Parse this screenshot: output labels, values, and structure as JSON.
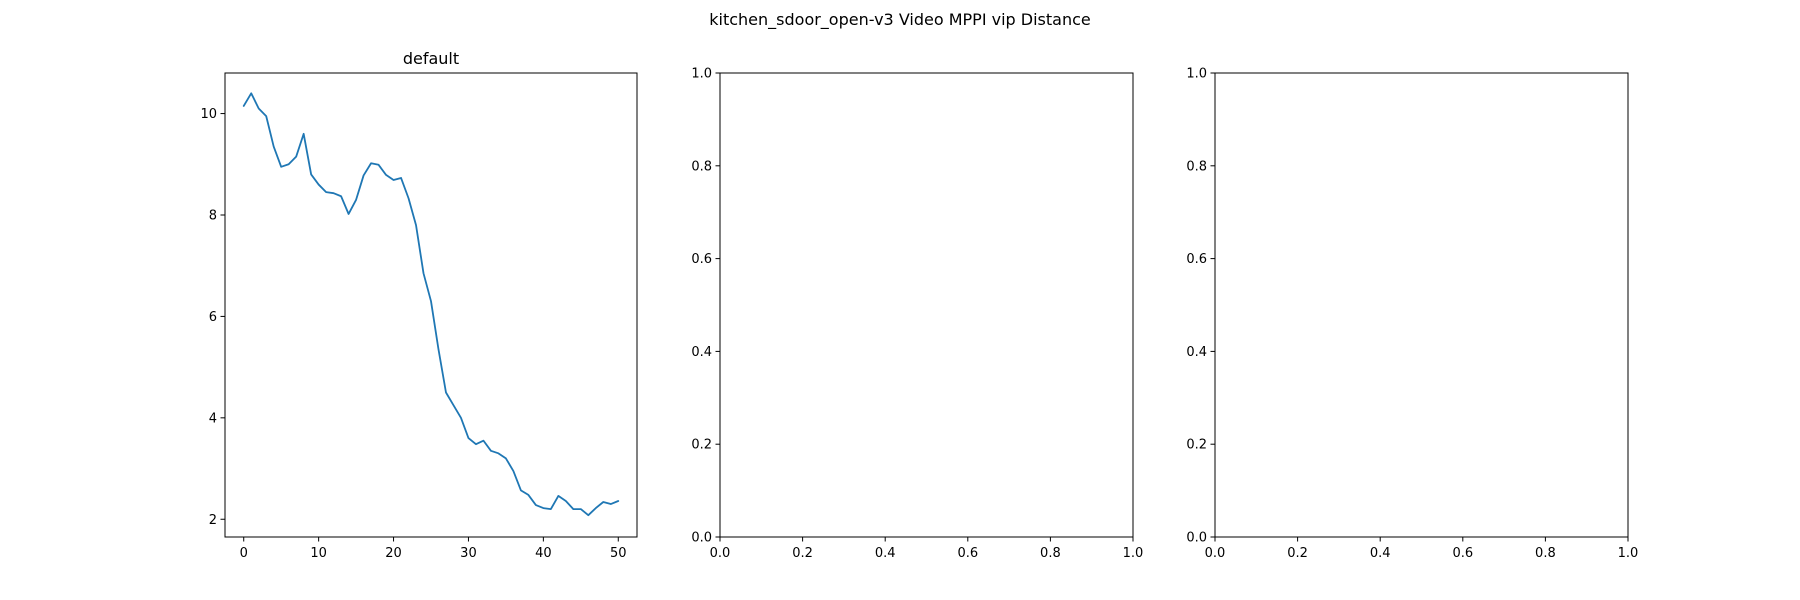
{
  "figure": {
    "suptitle": "kitchen_sdoor_open-v3 Video MPPI vip Distance"
  },
  "chart_data": [
    {
      "type": "line",
      "title": "default",
      "xlabel": "",
      "ylabel": "",
      "xlim": [
        -2.5,
        52.5
      ],
      "ylim": [
        1.65,
        10.8
      ],
      "xticks": [
        0,
        10,
        20,
        30,
        40,
        50
      ],
      "yticks": [
        2,
        4,
        6,
        8,
        10
      ],
      "grid": false,
      "legend": "none",
      "series": [
        {
          "color": "#1f77b4",
          "x": [
            0,
            1,
            2,
            3,
            4,
            5,
            6,
            7,
            8,
            9,
            10,
            11,
            12,
            13,
            14,
            15,
            16,
            17,
            18,
            19,
            20,
            21,
            22,
            23,
            24,
            25,
            26,
            27,
            28,
            29,
            30,
            31,
            32,
            33,
            34,
            35,
            36,
            37,
            38,
            39,
            40,
            41,
            42,
            43,
            44,
            45,
            46,
            47,
            48,
            49,
            50
          ],
          "y": [
            10.15,
            10.4,
            10.1,
            9.95,
            9.35,
            8.95,
            9.0,
            9.15,
            9.6,
            8.8,
            8.6,
            8.45,
            8.43,
            8.37,
            8.02,
            8.3,
            8.78,
            9.02,
            8.99,
            8.79,
            8.69,
            8.73,
            8.33,
            7.8,
            6.85,
            6.3,
            5.35,
            4.5,
            4.25,
            4.0,
            3.6,
            3.48,
            3.55,
            3.35,
            3.3,
            3.2,
            2.95,
            2.57,
            2.48,
            2.28,
            2.22,
            2.2,
            2.46,
            2.36,
            2.2,
            2.2,
            2.08,
            2.22,
            2.34,
            2.3,
            2.36
          ]
        }
      ]
    },
    {
      "type": "line",
      "title": "",
      "xlabel": "",
      "ylabel": "",
      "xlim": [
        0,
        1
      ],
      "ylim": [
        0,
        1
      ],
      "xticks": [
        0.0,
        0.2,
        0.4,
        0.6,
        0.8,
        1.0
      ],
      "yticks": [
        0.0,
        0.2,
        0.4,
        0.6,
        0.8,
        1.0
      ],
      "grid": false,
      "legend": "none",
      "series": []
    },
    {
      "type": "line",
      "title": "",
      "xlabel": "",
      "ylabel": "",
      "xlim": [
        0,
        1
      ],
      "ylim": [
        0,
        1
      ],
      "xticks": [
        0.0,
        0.2,
        0.4,
        0.6,
        0.8,
        1.0
      ],
      "yticks": [
        0.0,
        0.2,
        0.4,
        0.6,
        0.8,
        1.0
      ],
      "grid": false,
      "legend": "none",
      "series": []
    }
  ]
}
